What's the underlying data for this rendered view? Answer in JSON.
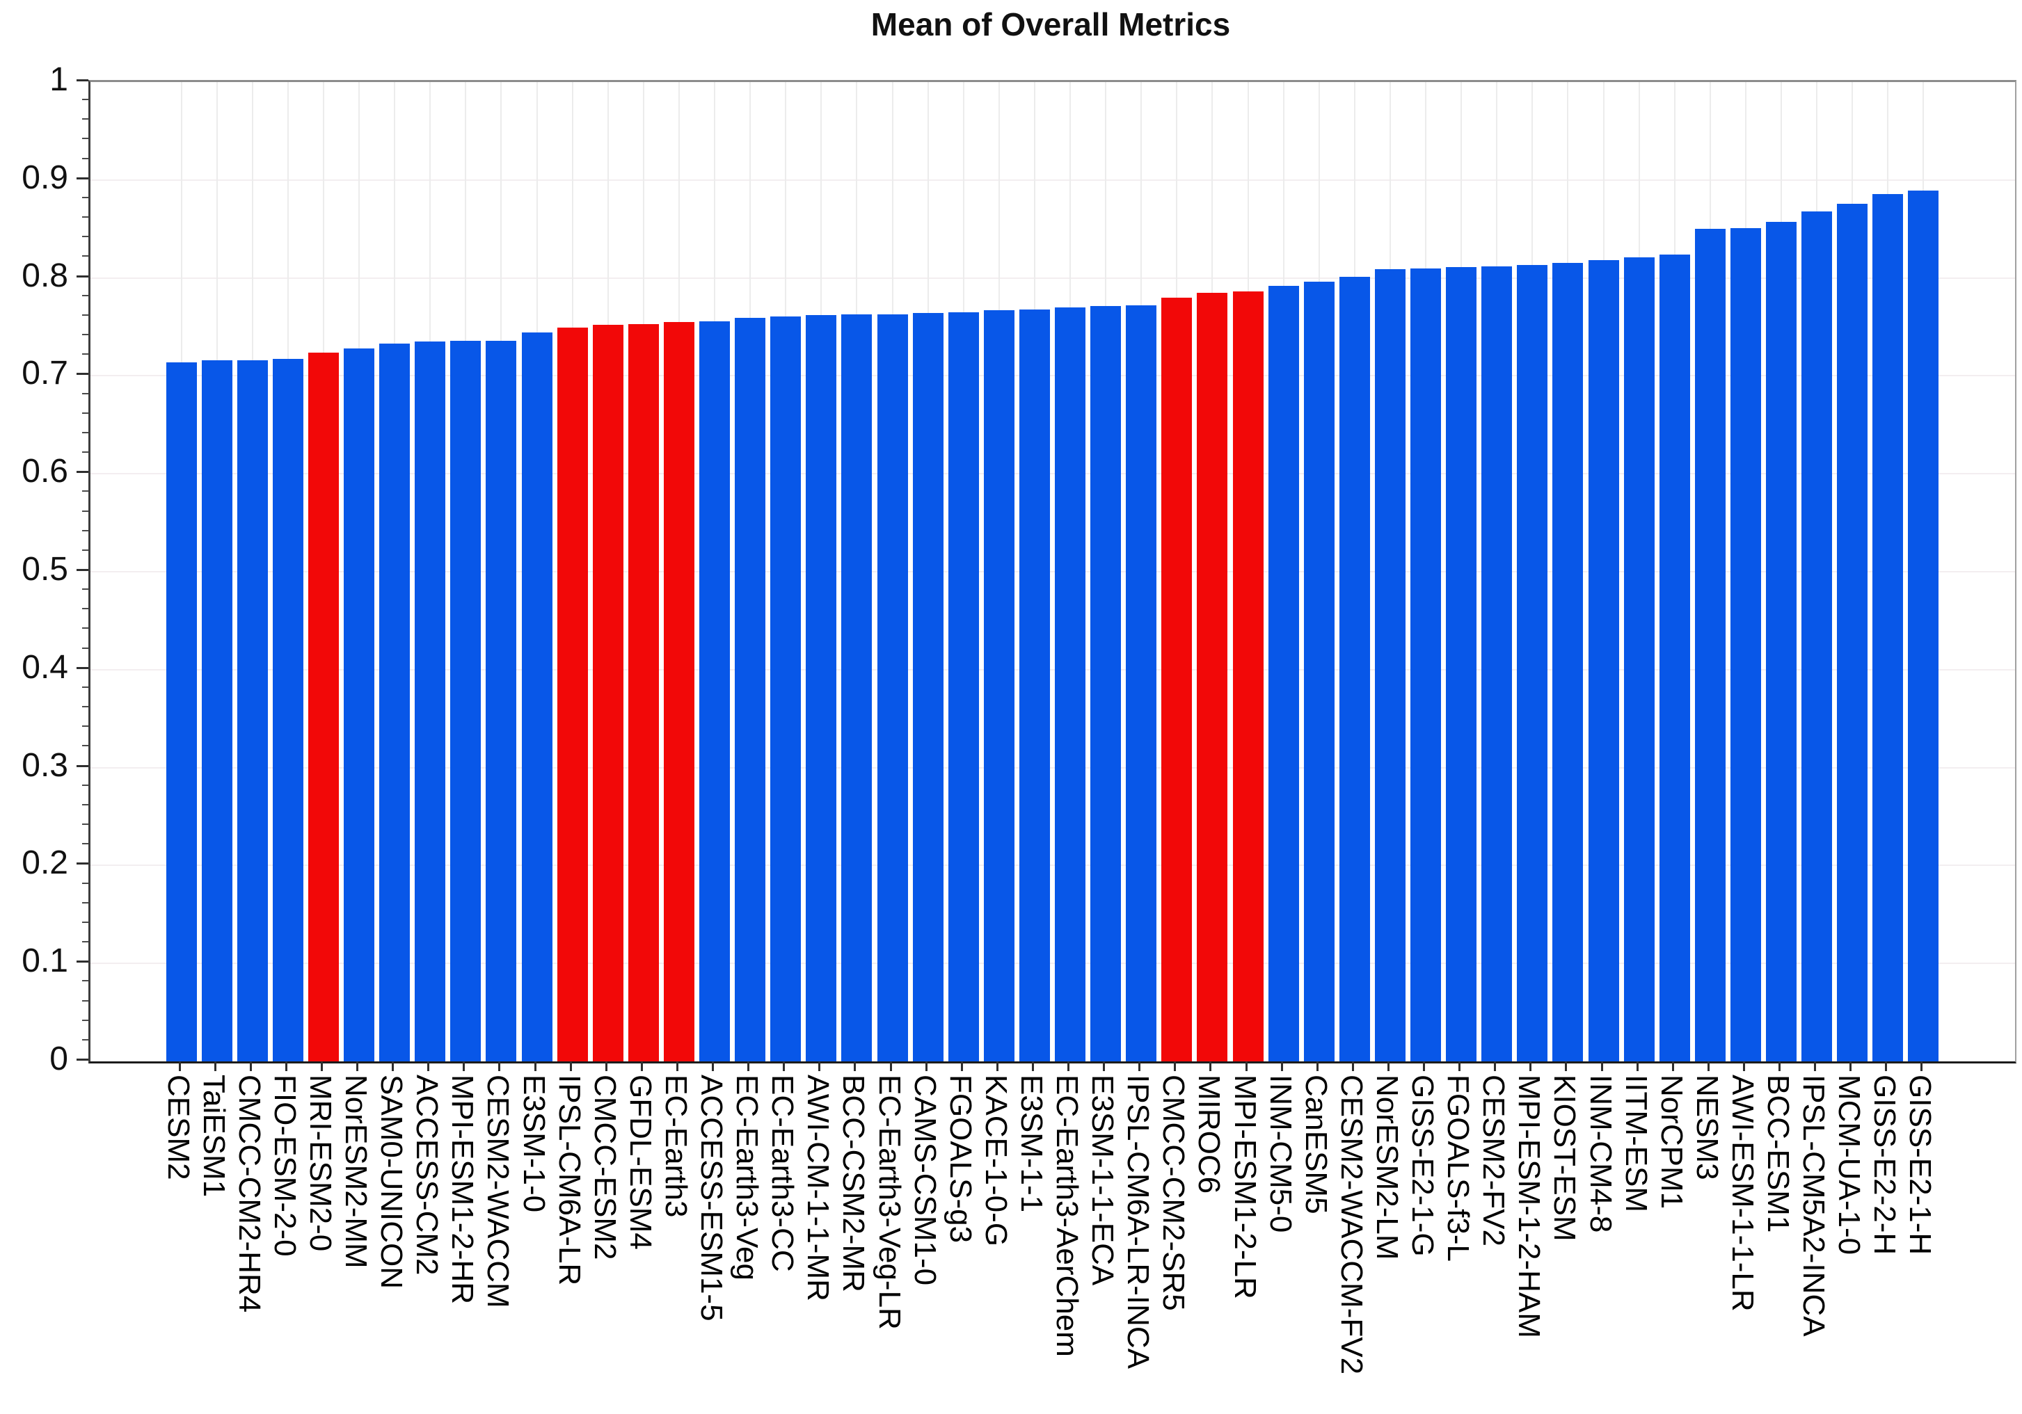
{
  "title": "Mean of Overall Metrics",
  "chart_data": {
    "type": "bar",
    "title": "Mean of Overall Metrics",
    "xlabel": "",
    "ylabel": "",
    "ylim": [
      0,
      1
    ],
    "ytick_labels": [
      "0",
      "0.1",
      "0.2",
      "0.3",
      "0.4",
      "0.5",
      "0.6",
      "0.7",
      "0.8",
      "0.9",
      "1"
    ],
    "minor_tick_step": 0.02,
    "grid": "light horizontal and vertical gridlines",
    "legend_position": "none",
    "colors": {
      "default_bar": "#0857e8",
      "highlight_bar": "#f20808",
      "axis": "#2e2e2e",
      "grid_h": "#f3eef0",
      "grid_v": "#ececec",
      "background": "#ffffff",
      "text": "#111111"
    },
    "categories": [
      "CESM2",
      "TaiESM1",
      "CMCC-CM2-HR4",
      "FIO-ESM-2-0",
      "MRI-ESM2-0",
      "NorESM2-MM",
      "SAM0-UNICON",
      "ACCESS-CM2",
      "MPI-ESM1-2-HR",
      "CESM2-WACCM",
      "E3SM-1-0",
      "IPSL-CM6A-LR",
      "CMCC-ESM2",
      "GFDL-ESM4",
      "EC-Earth3",
      "ACCESS-ESM1-5",
      "EC-Earth3-Veg",
      "EC-Earth3-CC",
      "AWI-CM-1-1-MR",
      "BCC-CSM2-MR",
      "EC-Earth3-Veg-LR",
      "CAMS-CSM1-0",
      "FGOALS-g3",
      "KACE-1-0-G",
      "E3SM-1-1",
      "EC-Earth3-AerChem",
      "E3SM-1-1-ECA",
      "IPSL-CM6A-LR-INCA",
      "CMCC-CM2-SR5",
      "MIROC6",
      "MPI-ESM1-2-LR",
      "INM-CM5-0",
      "CanESM5",
      "CESM2-WACCM-FV2",
      "NorESM2-LM",
      "GISS-E2-1-G",
      "FGOALS-f3-L",
      "CESM2-FV2",
      "MPI-ESM-1-2-HAM",
      "KIOST-ESM",
      "INM-CM4-8",
      "IITM-ESM",
      "NorCPM1",
      "NESM3",
      "AWI-ESM-1-1-LR",
      "BCC-ESM1",
      "IPSL-CM5A2-INCA",
      "MCM-UA-1-0",
      "GISS-E2-2-H",
      "GISS-E2-1-H"
    ],
    "values": [
      0.714,
      0.716,
      0.716,
      0.717,
      0.724,
      0.728,
      0.733,
      0.735,
      0.736,
      0.736,
      0.744,
      0.749,
      0.752,
      0.753,
      0.755,
      0.756,
      0.759,
      0.761,
      0.762,
      0.763,
      0.763,
      0.764,
      0.765,
      0.767,
      0.768,
      0.77,
      0.771,
      0.772,
      0.78,
      0.785,
      0.786,
      0.792,
      0.796,
      0.801,
      0.809,
      0.81,
      0.811,
      0.812,
      0.813,
      0.815,
      0.818,
      0.821,
      0.824,
      0.85,
      0.851,
      0.857,
      0.868,
      0.876,
      0.886,
      0.889
    ],
    "red_indices": [
      4,
      11,
      12,
      13,
      14,
      28,
      29,
      30
    ],
    "red_models": [
      "MRI-ESM2-0",
      "IPSL-CM6A-LR",
      "CMCC-ESM2",
      "GFDL-ESM4",
      "EC-Earth3",
      "CMCC-CM2-SR5",
      "MIROC6",
      "MPI-ESM1-2-LR"
    ]
  }
}
